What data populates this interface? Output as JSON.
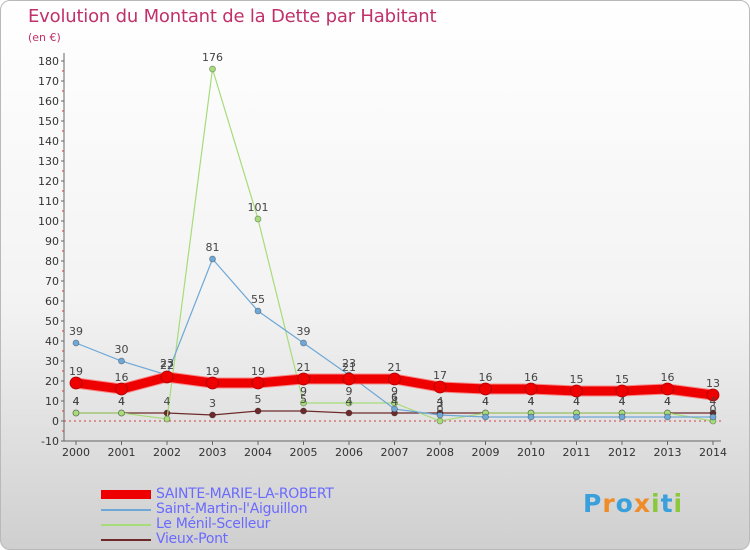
{
  "title": "Evolution du Montant de la Dette par Habitant",
  "subtitle": "(en €)",
  "logo": {
    "text": "Proxiti",
    "colors": [
      "#3aa0dc",
      "#f08c28",
      "#3aa0dc",
      "#f08c28",
      "#8cc83c",
      "#3aa0dc",
      "#8cc83c"
    ]
  },
  "chart_data": {
    "type": "line",
    "title": "Evolution du Montant de la Dette par Habitant",
    "ylabel": "(en €)",
    "xlabel": "",
    "x": [
      "2000",
      "2001",
      "2002",
      "2003",
      "2004",
      "2005",
      "2006",
      "2007",
      "2008",
      "2009",
      "2010",
      "2011",
      "2012",
      "2013",
      "2014"
    ],
    "ylim": [
      -10,
      180
    ],
    "yticks": [
      -10,
      0,
      10,
      20,
      30,
      40,
      50,
      60,
      70,
      80,
      90,
      100,
      110,
      120,
      130,
      140,
      150,
      160,
      170,
      180
    ],
    "grid": false,
    "legend_position": "bottom-left",
    "series": [
      {
        "name": "SAINTE-MARIE-LA-ROBERT",
        "color": "#ee0000",
        "width": 9,
        "values": [
          19,
          16,
          22,
          19,
          19,
          21,
          21,
          21,
          17,
          16,
          16,
          15,
          15,
          16,
          13
        ]
      },
      {
        "name": "Saint-Martin-l'Aiguillon",
        "color": "#6fa8d6",
        "width": 1.2,
        "values": [
          39,
          30,
          23,
          81,
          55,
          39,
          23,
          6,
          3,
          2,
          2,
          2,
          2,
          2,
          2
        ]
      },
      {
        "name": "Le Ménil-Scelleur",
        "color": "#a6dc7a",
        "width": 1.2,
        "values": [
          4,
          4,
          1,
          176,
          101,
          9,
          9,
          9,
          0,
          4,
          4,
          4,
          4,
          4,
          0
        ]
      },
      {
        "name": "Vieux-Pont",
        "color": "#6e2a2a",
        "width": 1.2,
        "values": [
          4,
          4,
          4,
          3,
          5,
          5,
          4,
          4,
          4,
          4,
          4,
          4,
          4,
          4,
          4
        ]
      }
    ],
    "data_labels": [
      {
        "x": "2000",
        "text": "39"
      },
      {
        "x": "2000",
        "text": "19"
      },
      {
        "x": "2000",
        "text": "4"
      },
      {
        "x": "2000",
        "text": "4"
      },
      {
        "x": "2001",
        "text": "30"
      },
      {
        "x": "2001",
        "text": "16"
      },
      {
        "x": "2001",
        "text": "4"
      },
      {
        "x": "2001",
        "text": "4"
      },
      {
        "x": "2002",
        "text": "23"
      },
      {
        "x": "2002",
        "text": "22"
      },
      {
        "x": "2002",
        "text": "4"
      },
      {
        "x": "2003",
        "text": "176"
      },
      {
        "x": "2003",
        "text": "81"
      },
      {
        "x": "2003",
        "text": "19"
      },
      {
        "x": "2003",
        "text": "3"
      },
      {
        "x": "2004",
        "text": "101"
      },
      {
        "x": "2004",
        "text": "55"
      },
      {
        "x": "2004",
        "text": "19"
      },
      {
        "x": "2004",
        "text": "5"
      },
      {
        "x": "2005",
        "text": "39"
      },
      {
        "x": "2005",
        "text": "21"
      },
      {
        "x": "2005",
        "text": "9"
      },
      {
        "x": "2005",
        "text": "5"
      },
      {
        "x": "2006",
        "text": "23"
      },
      {
        "x": "2006",
        "text": "21"
      },
      {
        "x": "2006",
        "text": "9"
      },
      {
        "x": "2006",
        "text": "4"
      },
      {
        "x": "2007",
        "text": "21"
      },
      {
        "x": "2007",
        "text": "9"
      },
      {
        "x": "2007",
        "text": "6"
      },
      {
        "x": "2007",
        "text": "4"
      },
      {
        "x": "2008",
        "text": "17"
      },
      {
        "x": "2008",
        "text": "4"
      },
      {
        "x": "2008",
        "text": "3"
      },
      {
        "x": "2008",
        "text": "0"
      },
      {
        "x": "2009",
        "text": "16"
      },
      {
        "x": "2009",
        "text": "4"
      },
      {
        "x": "2009",
        "text": "4"
      },
      {
        "x": "2010",
        "text": "16"
      },
      {
        "x": "2010",
        "text": "4"
      },
      {
        "x": "2010",
        "text": "4"
      },
      {
        "x": "2011",
        "text": "15"
      },
      {
        "x": "2011",
        "text": "4"
      },
      {
        "x": "2011",
        "text": "4"
      },
      {
        "x": "2012",
        "text": "15"
      },
      {
        "x": "2012",
        "text": "4"
      },
      {
        "x": "2012",
        "text": "4"
      },
      {
        "x": "2013",
        "text": "16"
      },
      {
        "x": "2013",
        "text": "4"
      },
      {
        "x": "2013",
        "text": "4"
      },
      {
        "x": "2014",
        "text": "13"
      },
      {
        "x": "2014",
        "text": "4"
      },
      {
        "x": "2014",
        "text": "0"
      }
    ]
  }
}
